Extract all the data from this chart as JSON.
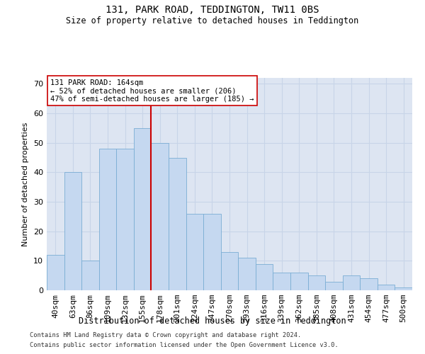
{
  "title1": "131, PARK ROAD, TEDDINGTON, TW11 0BS",
  "title2": "Size of property relative to detached houses in Teddington",
  "xlabel": "Distribution of detached houses by size in Teddington",
  "ylabel": "Number of detached properties",
  "categories": [
    "40sqm",
    "63sqm",
    "86sqm",
    "109sqm",
    "132sqm",
    "155sqm",
    "178sqm",
    "201sqm",
    "224sqm",
    "247sqm",
    "270sqm",
    "293sqm",
    "316sqm",
    "339sqm",
    "362sqm",
    "385sqm",
    "408sqm",
    "431sqm",
    "454sqm",
    "477sqm",
    "500sqm"
  ],
  "values": [
    12,
    40,
    10,
    48,
    48,
    55,
    50,
    45,
    26,
    26,
    13,
    11,
    9,
    6,
    6,
    5,
    3,
    5,
    4,
    2,
    1
  ],
  "bar_color": "#c5d8f0",
  "bar_edge_color": "#7aadd4",
  "vline_x": 5.5,
  "vline_color": "#cc0000",
  "annotation_text": "131 PARK ROAD: 164sqm\n← 52% of detached houses are smaller (206)\n47% of semi-detached houses are larger (185) →",
  "annotation_box_color": "#ffffff",
  "annotation_box_edge": "#cc0000",
  "ylim": [
    0,
    72
  ],
  "yticks": [
    0,
    10,
    20,
    30,
    40,
    50,
    60,
    70
  ],
  "grid_color": "#c8d4e8",
  "bg_color": "#dde5f2",
  "footnote1": "Contains HM Land Registry data © Crown copyright and database right 2024.",
  "footnote2": "Contains public sector information licensed under the Open Government Licence v3.0."
}
